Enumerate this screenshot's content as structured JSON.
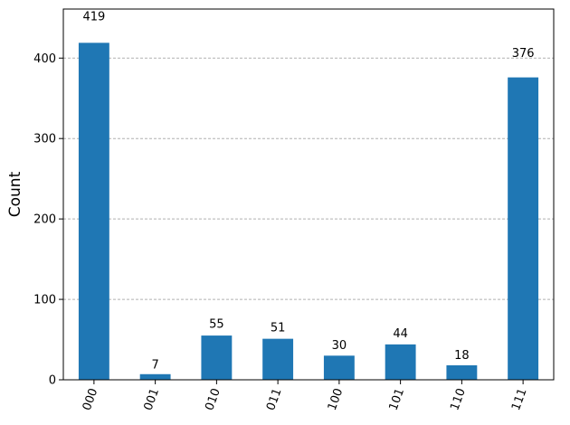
{
  "chart_data": {
    "type": "bar",
    "ylabel": "Count",
    "categories": [
      "000",
      "001",
      "010",
      "011",
      "100",
      "101",
      "110",
      "111"
    ],
    "values": [
      419,
      7,
      55,
      51,
      30,
      44,
      18,
      376
    ],
    "color": "#1f77b4",
    "ylim": [
      0,
      461
    ],
    "yticks": [
      0,
      100,
      200,
      300,
      400
    ],
    "grid": true
  }
}
